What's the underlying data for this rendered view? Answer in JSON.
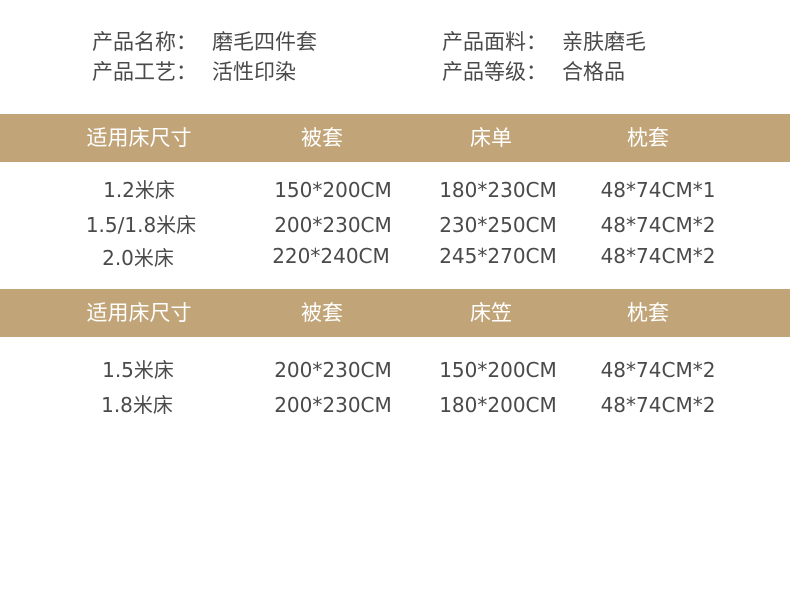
{
  "info": [
    {
      "label": "产品名称：",
      "value": "磨毛四件套"
    },
    {
      "label": "产品面料：",
      "value": "亲肤磨毛"
    },
    {
      "label": "产品工艺：",
      "value": "活性印染"
    },
    {
      "label": "产品等级：",
      "value": "合格品"
    }
  ],
  "colors": {
    "band": "#c1a478",
    "text": "#4a4a4a"
  },
  "table1": {
    "headers": [
      "适用床尺寸",
      "被套",
      "床单",
      "枕套"
    ],
    "rows": [
      [
        "1.2米床",
        "150*200CM",
        "180*230CM",
        "48*74CM*1"
      ],
      [
        "1.5/1.8米床",
        "200*230CM",
        "230*250CM",
        "48*74CM*2"
      ],
      [
        "2.0米床",
        "220*240CM",
        "245*270CM",
        "48*74CM*2"
      ]
    ]
  },
  "table2": {
    "headers": [
      "适用床尺寸",
      "被套",
      "床笠",
      "枕套"
    ],
    "rows": [
      [
        "1.5米床",
        "200*230CM",
        "150*200CM",
        "48*74CM*2"
      ],
      [
        "1.8米床",
        "200*230CM",
        "180*200CM",
        "48*74CM*2"
      ]
    ]
  }
}
